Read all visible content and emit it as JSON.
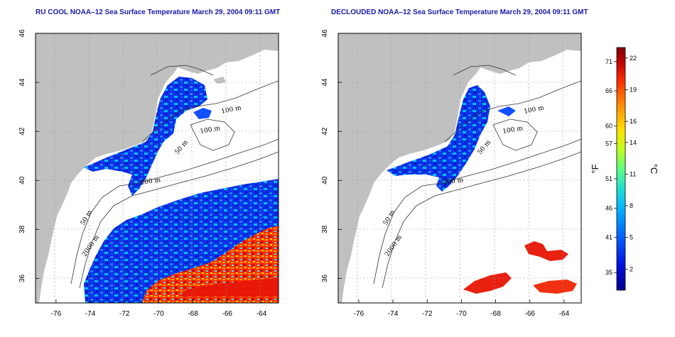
{
  "titles": {
    "left": "RU COOL NOAA–12 Sea Surface Temperature March 29, 2004 09:11 GMT",
    "right": "DECLOUDED NOAA–12 Sea Surface Temperature March 29, 2004 09:11 GMT"
  },
  "axes": {
    "lon_range": [
      -77.2,
      -63.0
    ],
    "lat_range": [
      35.0,
      46.0
    ],
    "lon_ticks": [
      "-76",
      "-74",
      "-72",
      "-70",
      "-68",
      "-66",
      "-64"
    ],
    "lat_ticks": [
      "36",
      "38",
      "40",
      "42",
      "44",
      "46"
    ],
    "grid": "dotted"
  },
  "contour_labels": {
    "left": [
      "100 m",
      "100 m",
      "50 m",
      "200 m",
      "50 m",
      "2000 m"
    ],
    "right": [
      "100 m",
      "100 m",
      "50 m",
      "200 m",
      "50 m",
      "2000 m"
    ]
  },
  "colorbar": {
    "fahrenheit_label": "°F",
    "celsius_label": "°C",
    "fahrenheit_ticks": [
      "71",
      "66",
      "60",
      "57",
      "51",
      "46",
      "41",
      "35"
    ],
    "celsius_ticks": [
      "22",
      "19",
      "16",
      "14",
      "11",
      "8",
      "5",
      "2"
    ],
    "fahrenheit_values": [
      71,
      66,
      60,
      57,
      51,
      46,
      41,
      35
    ],
    "celsius_values": [
      22,
      19,
      16,
      14,
      11,
      8,
      5,
      2
    ],
    "range_celsius": [
      0,
      23
    ],
    "colors": [
      "#00008a",
      "#0010e0",
      "#0060ff",
      "#00b0ff",
      "#20e0d0",
      "#60ff80",
      "#c0ff20",
      "#ffe000",
      "#ff9000",
      "#ff3000",
      "#c00000",
      "#800000"
    ]
  },
  "colors": {
    "land": "#c0c0c0",
    "no_data": "#ffffff",
    "title": "#1a1aa8"
  }
}
